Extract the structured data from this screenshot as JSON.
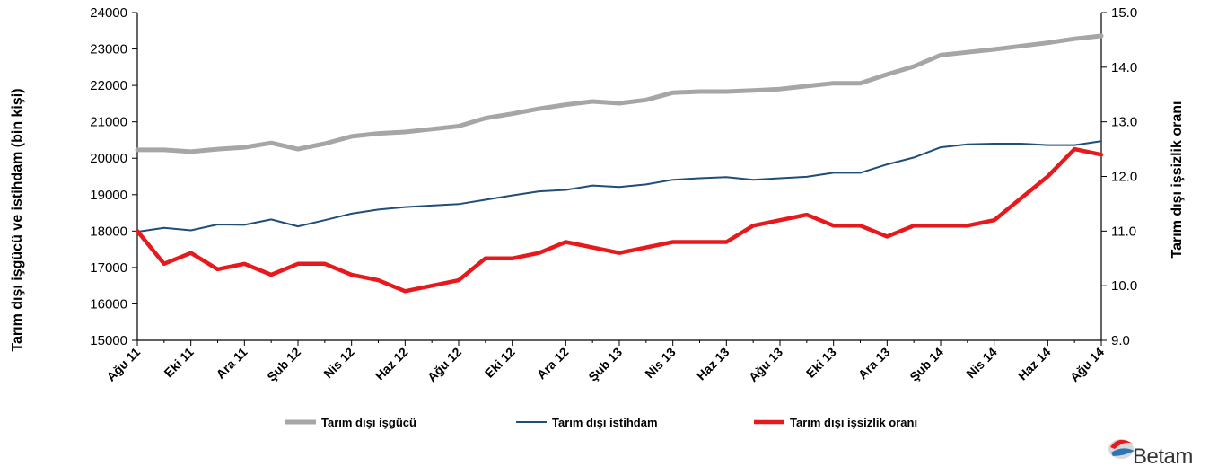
{
  "chart_data": {
    "type": "line",
    "categories": [
      "Ağu 11",
      "Eyl 11",
      "Eki 11",
      "Kas 11",
      "Ara 11",
      "Oca 12",
      "Şub 12",
      "Mar 12",
      "Nis 12",
      "May 12",
      "Haz 12",
      "Tem 12",
      "Ağu 12",
      "Eyl 12",
      "Eki 12",
      "Kas 12",
      "Ara 12",
      "Oca 13",
      "Şub 13",
      "Mar 13",
      "Nis 13",
      "May 13",
      "Haz 13",
      "Tem 13",
      "Ağu 13",
      "Eyl 13",
      "Eki 13",
      "Kas 13",
      "Ara 13",
      "Oca 14",
      "Şub 14",
      "Mar 14",
      "Nis 14",
      "May 14",
      "Haz 14",
      "Tem 14",
      "Ağu 14"
    ],
    "x_tick_labels": [
      "Ağu 11",
      "Eki 11",
      "Ara 11",
      "Şub 12",
      "Nis 12",
      "Haz 12",
      "Ağu 12",
      "Eki 12",
      "Ara 12",
      "Şub 13",
      "Nis 13",
      "Haz 13",
      "Ağu 13",
      "Eki 13",
      "Ara 13",
      "Şub 14",
      "Nis 14",
      "Haz 14",
      "Ağu 14"
    ],
    "series": [
      {
        "name": "Tarım dışı işgücü",
        "axis": "left",
        "color": "#a6a6a6",
        "values": [
          20230,
          20230,
          20180,
          20250,
          20300,
          20420,
          20250,
          20400,
          20600,
          20680,
          20720,
          20800,
          20880,
          21100,
          21220,
          21360,
          21470,
          21560,
          21510,
          21600,
          21800,
          21830,
          21830,
          21860,
          21900,
          21980,
          22060,
          22060,
          22300,
          22520,
          22830,
          22910,
          22990,
          23080,
          23170,
          23280,
          23360
        ]
      },
      {
        "name": "Tarım dışı istihdam",
        "axis": "left",
        "color": "#1f4e79",
        "values": [
          17980,
          18090,
          18020,
          18180,
          18170,
          18320,
          18130,
          18300,
          18480,
          18590,
          18660,
          18700,
          18740,
          18860,
          18980,
          19090,
          19130,
          19250,
          19210,
          19280,
          19410,
          19450,
          19480,
          19410,
          19450,
          19490,
          19600,
          19600,
          19830,
          20020,
          20300,
          20380,
          20400,
          20400,
          20360,
          20360,
          20470
        ]
      },
      {
        "name": "Tarım dışı işsizlik oranı",
        "axis": "right",
        "color": "#e8191c",
        "values": [
          11.0,
          10.4,
          10.6,
          10.3,
          10.4,
          10.2,
          10.4,
          10.4,
          10.2,
          10.1,
          9.9,
          10.0,
          10.1,
          10.5,
          10.5,
          10.6,
          10.8,
          10.7,
          10.6,
          10.7,
          10.8,
          10.8,
          10.8,
          11.1,
          11.2,
          11.3,
          11.1,
          11.1,
          10.9,
          11.1,
          11.1,
          11.1,
          11.2,
          11.6,
          12.0,
          12.5,
          12.4
        ]
      }
    ],
    "y_left": {
      "label": "Tarım dışı işgücü ve istihdam (bin kişi)",
      "min": 15000,
      "max": 24000,
      "step": 1000,
      "ticks": [
        "15000",
        "16000",
        "17000",
        "18000",
        "19000",
        "20000",
        "21000",
        "22000",
        "23000",
        "24000"
      ]
    },
    "y_right": {
      "label": "Tarım dışı işsizlik oranı",
      "min": 9.0,
      "max": 15.0,
      "step": 1.0,
      "ticks": [
        "9.0",
        "10.0",
        "11.0",
        "12.0",
        "13.0",
        "14.0",
        "15.0"
      ]
    },
    "grid": false,
    "legend_position": "bottom"
  },
  "logo": {
    "text": "Betam"
  }
}
